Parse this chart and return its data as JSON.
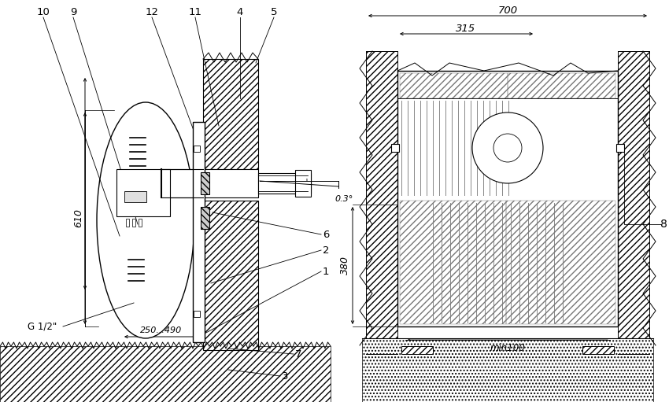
{
  "bg_color": "#ffffff",
  "line_color": "#000000",
  "figsize": [
    8.5,
    5.11
  ],
  "dpi": 100
}
